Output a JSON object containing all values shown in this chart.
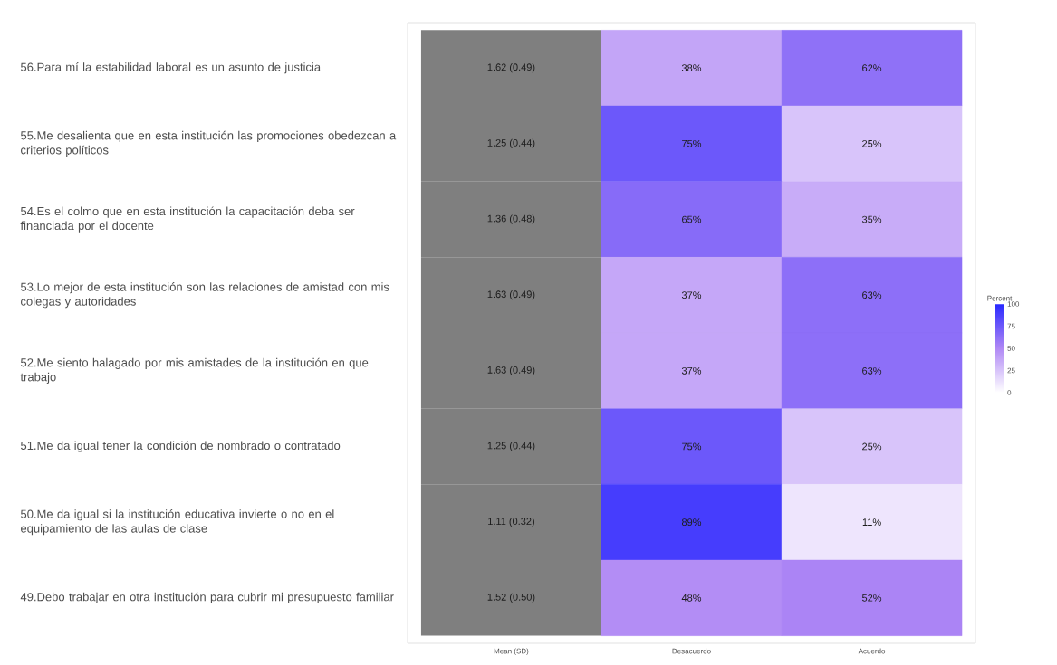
{
  "chart_data": {
    "type": "heatmap",
    "categories": [
      "Mean (SD)",
      "Desacuerdo",
      "Acuerdo"
    ],
    "y_categories": [
      "56.Para mí la estabilidad laboral es un asunto de justicia",
      "55.Me desalienta que en esta institución las promociones obedezcan a criterios políticos",
      "54.Es el colmo que en esta institución la capacitación deba ser financiada por el docente",
      "53.Lo mejor de esta institución son las relaciones de amistad con mis colegas y autoridades",
      "52.Me siento halagado por mis amistades de la institución en que trabajo",
      "51.Me da igual tener la condición de nombrado o contratado",
      "50.Me da igual si la institución educativa invierte o no en el equipamiento de las aulas de clase",
      "49.Debo trabajar en otra institución para cubrir mi presupuesto familiar"
    ],
    "cells": [
      [
        null,
        38,
        62
      ],
      [
        null,
        75,
        25
      ],
      [
        null,
        65,
        35
      ],
      [
        null,
        37,
        63
      ],
      [
        null,
        37,
        63
      ],
      [
        null,
        75,
        25
      ],
      [
        null,
        89,
        11
      ],
      [
        null,
        48,
        52
      ]
    ],
    "cell_labels": [
      [
        "1.62 (0.49)",
        "38%",
        "62%"
      ],
      [
        "1.25 (0.44)",
        "75%",
        "25%"
      ],
      [
        "1.36 (0.48)",
        "65%",
        "35%"
      ],
      [
        "1.63 (0.49)",
        "37%",
        "63%"
      ],
      [
        "1.63 (0.49)",
        "37%",
        "63%"
      ],
      [
        "1.25 (0.44)",
        "75%",
        "25%"
      ],
      [
        "1.11 (0.32)",
        "89%",
        "11%"
      ],
      [
        "1.52 (0.50)",
        "48%",
        "52%"
      ]
    ],
    "clabel": "Percent",
    "clim": [
      0,
      100
    ],
    "cticks": [
      0,
      25,
      50,
      75,
      100
    ]
  }
}
